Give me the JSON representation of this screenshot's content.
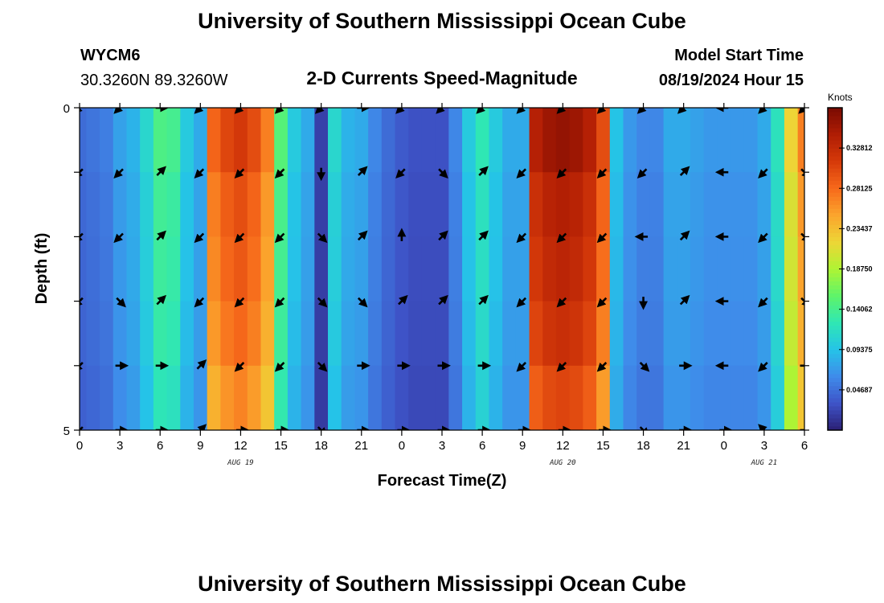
{
  "title": "University of Southern Mississippi Ocean Cube",
  "footer_title": "University of Southern Mississippi Ocean Cube",
  "station": {
    "id": "WYCM6",
    "coords": "30.3260N  89.3260W"
  },
  "subtitle": "2-D Currents Speed-Magnitude",
  "model_start": {
    "label": "Model Start Time",
    "value": "08/19/2024 Hour 15"
  },
  "colorbar": {
    "unit": "Knots",
    "tick_labels": [
      "0.04687",
      "0.09375",
      "0.14062",
      "0.18750",
      "0.23437",
      "0.28125",
      "0.32812"
    ],
    "tick_values": [
      0.04687,
      0.09375,
      0.14062,
      0.1875,
      0.23437,
      0.28125,
      0.32812
    ],
    "range": [
      0,
      0.375
    ],
    "colors": [
      "#2a1f73",
      "#3e53c7",
      "#3f8bea",
      "#25c3e8",
      "#2fe7b4",
      "#5ef46a",
      "#aef434",
      "#edd636",
      "#fba52d",
      "#f76a1b",
      "#d63a0a",
      "#b01d04",
      "#7a0b02"
    ]
  },
  "chart_data": {
    "type": "heatmap",
    "title": "2-D Currents Speed-Magnitude",
    "xlabel": "Forecast Time(Z)",
    "ylabel": "Depth (ft)",
    "x_tick_labels": [
      "0",
      "3",
      "6",
      "9",
      "12",
      "15",
      "18",
      "21",
      "0",
      "3",
      "6",
      "9",
      "12",
      "15",
      "18",
      "21",
      "0",
      "3",
      "6"
    ],
    "x_range_hours": [
      0,
      54
    ],
    "y_tick_labels": [
      "0",
      "5"
    ],
    "y_range": [
      0,
      5
    ],
    "date_labels": [
      {
        "text": "AUG 19",
        "hour": 12
      },
      {
        "text": "AUG 20",
        "hour": 36
      },
      {
        "text": "AUG 21",
        "hour": 51
      }
    ],
    "depth_rows": [
      0,
      1,
      2,
      3,
      4,
      5
    ],
    "columns_hours": [
      0,
      1,
      2,
      3,
      4,
      5,
      6,
      7,
      8,
      9,
      10,
      11,
      12,
      13,
      14,
      15,
      16,
      17,
      18,
      19,
      20,
      21,
      22,
      23,
      24,
      25,
      26,
      27,
      28,
      29,
      30,
      31,
      32,
      33,
      34,
      35,
      36,
      37,
      38,
      39,
      40,
      41,
      42,
      43,
      44,
      45,
      46,
      47,
      48,
      49,
      50,
      51,
      52,
      53,
      54
    ],
    "speed_profile_knots": [
      0.045,
      0.05,
      0.055,
      0.075,
      0.085,
      0.11,
      0.145,
      0.14,
      0.1,
      0.08,
      0.285,
      0.305,
      0.315,
      0.3,
      0.27,
      0.15,
      0.1,
      0.08,
      0.02,
      0.11,
      0.085,
      0.08,
      0.06,
      0.045,
      0.035,
      0.03,
      0.03,
      0.03,
      0.06,
      0.1,
      0.125,
      0.1,
      0.08,
      0.08,
      0.34,
      0.355,
      0.36,
      0.355,
      0.34,
      0.3,
      0.095,
      0.07,
      0.06,
      0.06,
      0.08,
      0.08,
      0.075,
      0.07,
      0.07,
      0.07,
      0.07,
      0.08,
      0.12,
      0.22,
      0.27
    ],
    "depth_scale": [
      1.0,
      0.95,
      0.93,
      0.9,
      0.85,
      0.55
    ],
    "vector_hours": [
      0,
      3,
      6,
      9,
      12,
      15,
      18,
      21,
      24,
      27,
      30,
      33,
      36,
      39,
      42,
      45,
      48,
      51,
      54
    ],
    "vector_depths": [
      0,
      1,
      2,
      3,
      4,
      5
    ],
    "vector_directions_deg": [
      [
        135,
        135,
        135,
        135,
        135,
        135
      ],
      [
        135,
        135,
        135,
        45,
        0,
        0
      ],
      [
        0,
        315,
        315,
        315,
        0,
        0
      ],
      [
        135,
        135,
        135,
        135,
        315,
        315
      ],
      [
        135,
        135,
        135,
        135,
        135,
        0
      ],
      [
        135,
        135,
        135,
        135,
        135,
        0
      ],
      [
        135,
        90,
        45,
        45,
        45,
        45
      ],
      [
        0,
        315,
        315,
        45,
        0,
        0
      ],
      [
        135,
        135,
        270,
        315,
        0,
        0
      ],
      [
        135,
        45,
        315,
        315,
        0,
        0
      ],
      [
        135,
        315,
        315,
        315,
        0,
        0
      ],
      [
        135,
        135,
        135,
        135,
        135,
        0
      ],
      [
        135,
        135,
        135,
        135,
        135,
        0
      ],
      [
        135,
        135,
        135,
        135,
        135,
        0
      ],
      [
        135,
        135,
        180,
        90,
        45,
        45
      ],
      [
        135,
        315,
        315,
        315,
        0,
        0
      ],
      [
        180,
        180,
        180,
        180,
        180,
        0
      ],
      [
        135,
        135,
        135,
        135,
        135,
        225
      ],
      [
        135,
        45,
        45,
        45,
        0,
        0
      ]
    ]
  }
}
